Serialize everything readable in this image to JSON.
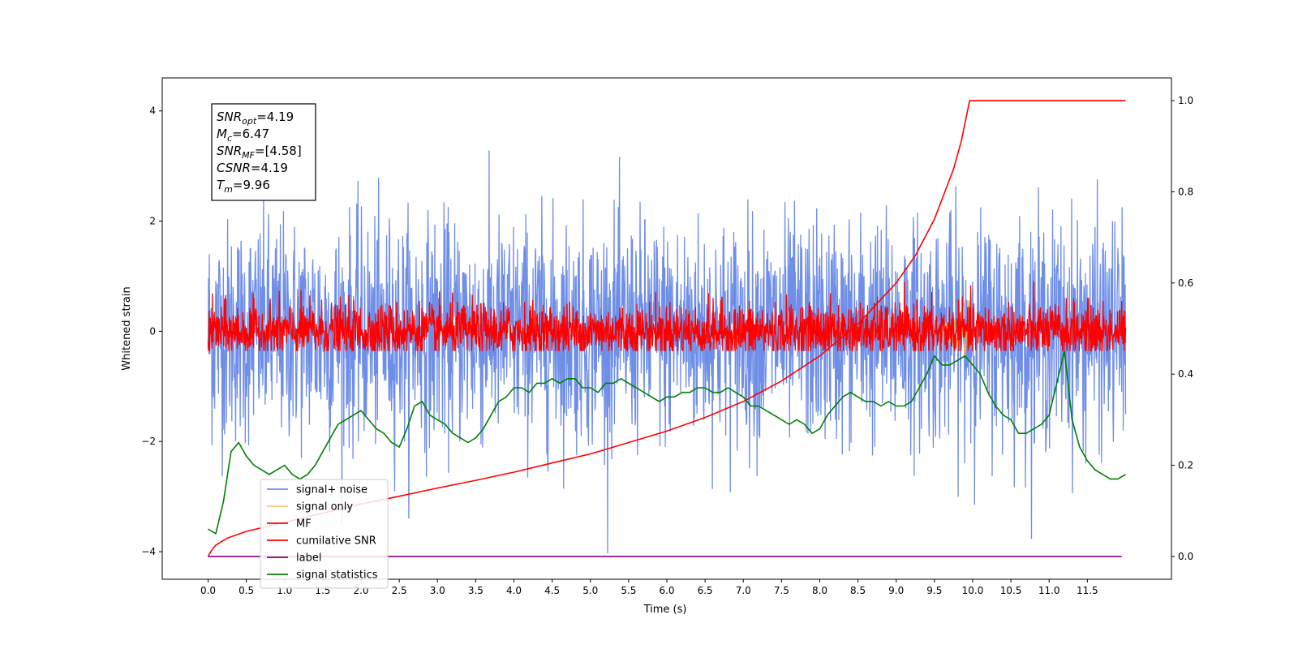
{
  "chart_data": {
    "type": "line",
    "xlabel": "Time (s)",
    "ylabel": "Whitened strain",
    "xlim": [
      -0.6,
      12.6
    ],
    "ylim": [
      -4.5,
      4.6
    ],
    "y2lim": [
      -0.05,
      1.05
    ],
    "x_ticks": [
      0.0,
      0.5,
      1.0,
      1.5,
      2.0,
      2.5,
      3.0,
      3.5,
      4.0,
      4.5,
      5.0,
      5.5,
      6.0,
      6.5,
      7.0,
      7.5,
      8.0,
      8.5,
      9.0,
      9.5,
      10.0,
      10.5,
      11.0,
      11.5
    ],
    "x_tick_labels": [
      "0.0",
      "0.5",
      "1.0",
      "1.5",
      "2.0",
      "2.5",
      "3.0",
      "3.5",
      "4.0",
      "4.5",
      "5.0",
      "5.5",
      "6.0",
      "6.5",
      "7.0",
      "7.5",
      "8.0",
      "8.5",
      "9.0",
      "9.5",
      "10.0",
      "10.5",
      "11.0",
      "11.5"
    ],
    "y_ticks": [
      -4,
      -2,
      0,
      2,
      4
    ],
    "y_tick_labels": [
      "−4",
      "−2",
      "0",
      "2",
      "4"
    ],
    "y2_ticks": [
      0.0,
      0.2,
      0.4,
      0.6,
      0.8,
      1.0
    ],
    "y2_tick_labels": [
      "0.0",
      "0.2",
      "0.4",
      "0.6",
      "0.8",
      "1.0"
    ],
    "grid": false,
    "legend_position": "lower-left",
    "annotation": {
      "lines": [
        {
          "sym": "SNR",
          "sub": "opt",
          "value": "=4.19"
        },
        {
          "sym": "M",
          "sub": "c",
          "value": "=6.47"
        },
        {
          "sym": "SNR",
          "sub": "MF",
          "value": "=[4.58]"
        },
        {
          "sym": "CSNR",
          "sub": "",
          "value": "=4.19"
        },
        {
          "sym": "T",
          "sub": "m",
          "value": "=9.96"
        }
      ]
    },
    "series": [
      {
        "name": "signal+ noise",
        "axis": "left",
        "color": "#6f8ee8",
        "style": "noise",
        "x_range": [
          0,
          12
        ],
        "center": 0.0,
        "spread": 1.0,
        "peak_max": 4.15,
        "peak_min": -4.1
      },
      {
        "name": "signal only",
        "axis": "left",
        "color": "#f5b041",
        "style": "line",
        "x": [
          9.55,
          9.6,
          9.65,
          9.7,
          9.75,
          9.8,
          9.85,
          9.9,
          9.95,
          10.0
        ],
        "y": [
          0.05,
          -0.1,
          0.15,
          -0.2,
          0.25,
          -0.3,
          0.35,
          -0.45,
          0.55,
          -0.3
        ]
      },
      {
        "name": "MF",
        "axis": "left",
        "color": "#ff0000",
        "style": "noise",
        "x_range": [
          0,
          12
        ],
        "center": 0.0,
        "spread": 0.25,
        "peak_max": 0.95,
        "peak_min": -0.35
      },
      {
        "name": "cumilative SNR",
        "axis": "right",
        "color": "#ff0000",
        "style": "line",
        "x": [
          0.0,
          0.05,
          0.1,
          0.25,
          0.5,
          1.0,
          1.5,
          2.0,
          2.5,
          3.0,
          3.5,
          4.0,
          4.5,
          5.0,
          5.5,
          6.0,
          6.5,
          7.0,
          7.5,
          8.0,
          8.5,
          9.0,
          9.25,
          9.5,
          9.75,
          9.85,
          9.96,
          10.5,
          11.0,
          11.5,
          12.0
        ],
        "y": [
          0.0,
          0.015,
          0.025,
          0.04,
          0.055,
          0.075,
          0.095,
          0.115,
          0.132,
          0.15,
          0.167,
          0.185,
          0.205,
          0.225,
          0.25,
          0.275,
          0.305,
          0.34,
          0.385,
          0.44,
          0.51,
          0.6,
          0.66,
          0.74,
          0.85,
          0.91,
          1.0,
          1.0,
          1.0,
          1.0,
          1.0
        ]
      },
      {
        "name": "label",
        "axis": "right",
        "color": "#800080",
        "style": "line",
        "x": [
          0.0,
          11.95
        ],
        "y": [
          0.0,
          0.0
        ]
      },
      {
        "name": "signal statistics",
        "axis": "right",
        "color": "#008000",
        "style": "line",
        "x": [
          0.0,
          0.1,
          0.2,
          0.3,
          0.4,
          0.5,
          0.6,
          0.7,
          0.8,
          0.9,
          1.0,
          1.1,
          1.2,
          1.3,
          1.4,
          1.5,
          1.6,
          1.7,
          1.8,
          1.9,
          2.0,
          2.1,
          2.2,
          2.3,
          2.4,
          2.5,
          2.6,
          2.7,
          2.8,
          2.9,
          3.0,
          3.1,
          3.2,
          3.3,
          3.4,
          3.5,
          3.6,
          3.7,
          3.8,
          3.9,
          4.0,
          4.1,
          4.2,
          4.3,
          4.4,
          4.5,
          4.6,
          4.7,
          4.8,
          4.9,
          5.0,
          5.1,
          5.2,
          5.3,
          5.4,
          5.5,
          5.6,
          5.7,
          5.8,
          5.9,
          6.0,
          6.1,
          6.2,
          6.3,
          6.4,
          6.5,
          6.6,
          6.7,
          6.8,
          6.9,
          7.0,
          7.1,
          7.2,
          7.3,
          7.4,
          7.5,
          7.6,
          7.7,
          7.8,
          7.9,
          8.0,
          8.1,
          8.2,
          8.3,
          8.4,
          8.5,
          8.6,
          8.7,
          8.8,
          8.9,
          9.0,
          9.1,
          9.2,
          9.3,
          9.4,
          9.5,
          9.6,
          9.7,
          9.8,
          9.9,
          10.0,
          10.1,
          10.2,
          10.3,
          10.4,
          10.5,
          10.6,
          10.7,
          10.8,
          10.9,
          11.0,
          11.1,
          11.2,
          11.3,
          11.4,
          11.5,
          11.6,
          11.7,
          11.8,
          11.9,
          12.0
        ],
        "y": [
          0.06,
          0.05,
          0.12,
          0.23,
          0.25,
          0.22,
          0.2,
          0.19,
          0.18,
          0.19,
          0.2,
          0.18,
          0.17,
          0.18,
          0.2,
          0.23,
          0.26,
          0.29,
          0.3,
          0.31,
          0.32,
          0.3,
          0.28,
          0.27,
          0.25,
          0.24,
          0.28,
          0.33,
          0.34,
          0.31,
          0.3,
          0.29,
          0.27,
          0.26,
          0.25,
          0.26,
          0.28,
          0.31,
          0.34,
          0.35,
          0.37,
          0.37,
          0.36,
          0.38,
          0.38,
          0.39,
          0.38,
          0.39,
          0.39,
          0.37,
          0.37,
          0.36,
          0.38,
          0.38,
          0.39,
          0.38,
          0.37,
          0.36,
          0.35,
          0.34,
          0.35,
          0.35,
          0.36,
          0.36,
          0.37,
          0.37,
          0.36,
          0.36,
          0.37,
          0.36,
          0.35,
          0.33,
          0.33,
          0.32,
          0.31,
          0.3,
          0.29,
          0.3,
          0.29,
          0.27,
          0.28,
          0.31,
          0.33,
          0.35,
          0.36,
          0.35,
          0.34,
          0.34,
          0.33,
          0.34,
          0.33,
          0.33,
          0.34,
          0.37,
          0.4,
          0.44,
          0.42,
          0.42,
          0.43,
          0.44,
          0.42,
          0.4,
          0.36,
          0.33,
          0.31,
          0.3,
          0.27,
          0.27,
          0.28,
          0.29,
          0.31,
          0.38,
          0.45,
          0.3,
          0.24,
          0.21,
          0.19,
          0.18,
          0.17,
          0.17,
          0.18
        ]
      }
    ]
  }
}
